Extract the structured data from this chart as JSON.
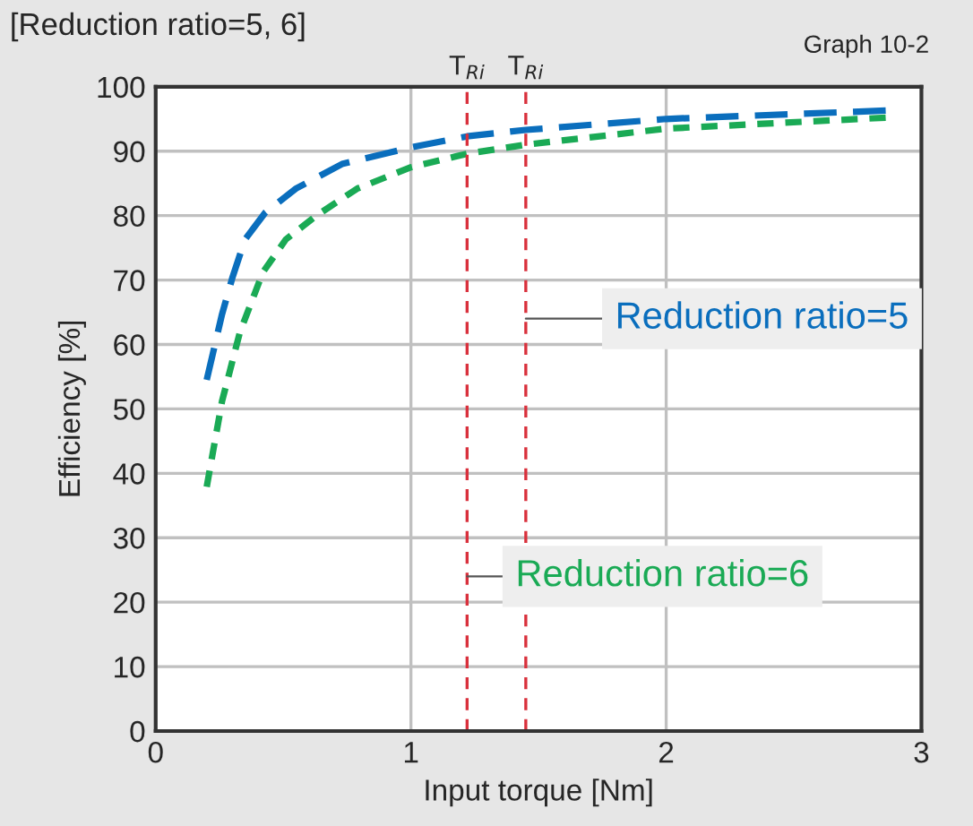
{
  "chart_data": {
    "type": "line",
    "title": "[Reduction ratio=5, 6]",
    "xlabel": "Input torque [Nm]",
    "ylabel": "Efficiency [%]",
    "annotations": [
      "Graph 10-2"
    ],
    "series": [
      {
        "name": "Reduction ratio=5",
        "color": "#0a6ebd",
        "line_style": "dashed",
        "x": [
          0.2,
          0.26,
          0.3,
          0.35,
          0.43,
          0.55,
          0.73,
          1.0,
          1.22,
          1.45,
          2.0,
          2.86
        ],
        "values": [
          54.5,
          64.7,
          70.3,
          76.3,
          80.5,
          84.2,
          88,
          90.6,
          92.3,
          93.3,
          95,
          96.3
        ]
      },
      {
        "name": "Reduction ratio=6",
        "color": "#1aaa55",
        "line_style": "dotted",
        "x": [
          0.2,
          0.26,
          0.33,
          0.42,
          0.51,
          0.63,
          0.79,
          1.0,
          1.22,
          1.45,
          2.0,
          2.86
        ],
        "values": [
          37.9,
          51.2,
          61.9,
          71.2,
          76.3,
          80,
          84.2,
          87.5,
          89.6,
          91,
          93.5,
          95.2
        ]
      }
    ],
    "ref_lines": [
      {
        "axis": "x",
        "value": 1.22,
        "label": "T$_{Ri}$",
        "color": "#d9303c",
        "line_style": "dashed"
      },
      {
        "axis": "x",
        "value": 1.45,
        "label": "T$_{Ri}$",
        "color": "#d9303c",
        "line_style": "dashed"
      }
    ],
    "xlim": [
      0,
      3
    ],
    "xticks": [
      0,
      1,
      2,
      3
    ],
    "ylim": [
      0,
      100
    ],
    "yticks": [
      0,
      10,
      20,
      30,
      40,
      50,
      60,
      70,
      80,
      90,
      100
    ],
    "grid": true,
    "legend": false
  }
}
